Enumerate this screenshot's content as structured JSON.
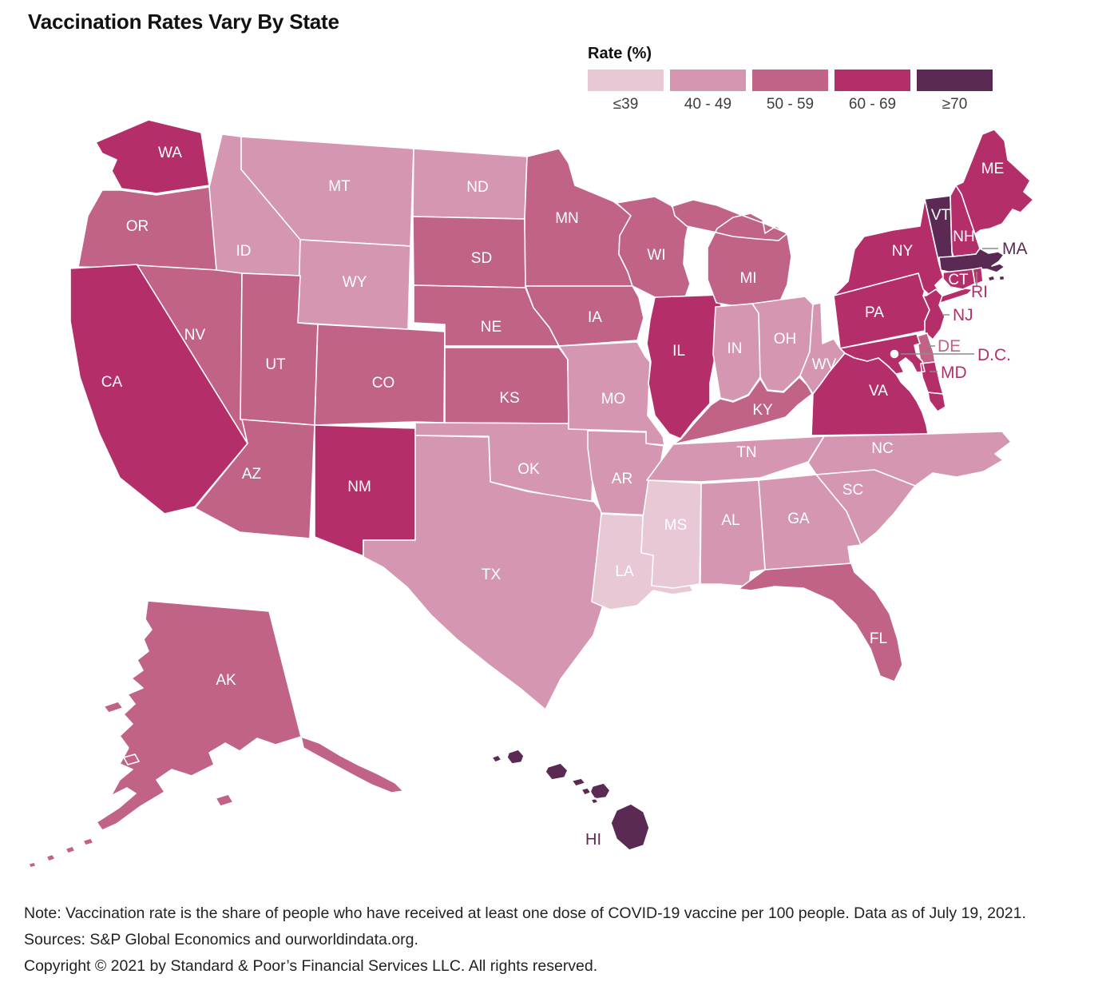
{
  "title": "Vaccination Rates Vary By State",
  "legend": {
    "title": "Rate (%)",
    "bands": [
      {
        "label": "≤39",
        "color": "#e9c8d6"
      },
      {
        "label": "40 - 49",
        "color": "#d596b1"
      },
      {
        "label": "50 - 59",
        "color": "#c16287"
      },
      {
        "label": "60 - 69",
        "color": "#b42f6a"
      },
      {
        "label": "≥70",
        "color": "#5a2a55"
      }
    ]
  },
  "map": {
    "border_color": "#ffffff",
    "leader_line_color": "#8c8c8c",
    "inside_label_color": "#ffffff",
    "dc_marker_fill": "#ffffff"
  },
  "chart_data": {
    "type": "choropleth",
    "title": "Vaccination Rates Vary By State",
    "metric": "COVID-19 vaccination rate: share of people who have received at least one dose per 100 people",
    "as_of": "July 19, 2021",
    "buckets": [
      "≤39",
      "40 - 49",
      "50 - 59",
      "60 - 69",
      "≥70"
    ],
    "states": [
      {
        "abbr": "WA",
        "bucket": "60 - 69"
      },
      {
        "abbr": "OR",
        "bucket": "50 - 59"
      },
      {
        "abbr": "CA",
        "bucket": "60 - 69"
      },
      {
        "abbr": "NV",
        "bucket": "50 - 59"
      },
      {
        "abbr": "ID",
        "bucket": "40 - 49"
      },
      {
        "abbr": "MT",
        "bucket": "40 - 49"
      },
      {
        "abbr": "WY",
        "bucket": "40 - 49"
      },
      {
        "abbr": "UT",
        "bucket": "50 - 59"
      },
      {
        "abbr": "CO",
        "bucket": "50 - 59"
      },
      {
        "abbr": "AZ",
        "bucket": "50 - 59"
      },
      {
        "abbr": "NM",
        "bucket": "60 - 69"
      },
      {
        "abbr": "ND",
        "bucket": "40 - 49"
      },
      {
        "abbr": "SD",
        "bucket": "50 - 59"
      },
      {
        "abbr": "NE",
        "bucket": "50 - 59"
      },
      {
        "abbr": "KS",
        "bucket": "50 - 59"
      },
      {
        "abbr": "OK",
        "bucket": "40 - 49"
      },
      {
        "abbr": "TX",
        "bucket": "40 - 49"
      },
      {
        "abbr": "MN",
        "bucket": "50 - 59"
      },
      {
        "abbr": "IA",
        "bucket": "50 - 59"
      },
      {
        "abbr": "MO",
        "bucket": "40 - 49"
      },
      {
        "abbr": "AR",
        "bucket": "40 - 49"
      },
      {
        "abbr": "LA",
        "bucket": "≤39"
      },
      {
        "abbr": "WI",
        "bucket": "50 - 59"
      },
      {
        "abbr": "IL",
        "bucket": "60 - 69"
      },
      {
        "abbr": "MS",
        "bucket": "≤39"
      },
      {
        "abbr": "MI",
        "bucket": "50 - 59"
      },
      {
        "abbr": "IN",
        "bucket": "40 - 49"
      },
      {
        "abbr": "OH",
        "bucket": "40 - 49"
      },
      {
        "abbr": "KY",
        "bucket": "50 - 59"
      },
      {
        "abbr": "TN",
        "bucket": "40 - 49"
      },
      {
        "abbr": "WV",
        "bucket": "40 - 49"
      },
      {
        "abbr": "VA",
        "bucket": "60 - 69"
      },
      {
        "abbr": "NC",
        "bucket": "40 - 49"
      },
      {
        "abbr": "SC",
        "bucket": "40 - 49"
      },
      {
        "abbr": "GA",
        "bucket": "40 - 49"
      },
      {
        "abbr": "AL",
        "bucket": "40 - 49"
      },
      {
        "abbr": "FL",
        "bucket": "50 - 59"
      },
      {
        "abbr": "PA",
        "bucket": "60 - 69"
      },
      {
        "abbr": "NY",
        "bucket": "60 - 69"
      },
      {
        "abbr": "VT",
        "bucket": "≥70"
      },
      {
        "abbr": "NH",
        "bucket": "60 - 69"
      },
      {
        "abbr": "ME",
        "bucket": "60 - 69"
      },
      {
        "abbr": "MA",
        "bucket": "≥70"
      },
      {
        "abbr": "CT",
        "bucket": "60 - 69"
      },
      {
        "abbr": "RI",
        "bucket": "60 - 69"
      },
      {
        "abbr": "NJ",
        "bucket": "60 - 69"
      },
      {
        "abbr": "DE",
        "bucket": "50 - 59"
      },
      {
        "abbr": "MD",
        "bucket": "60 - 69"
      },
      {
        "abbr": "D.C.",
        "bucket": "60 - 69"
      },
      {
        "abbr": "AK",
        "bucket": "50 - 59"
      },
      {
        "abbr": "HI",
        "bucket": "≥70"
      }
    ]
  },
  "footer": {
    "note": "Note: Vaccination rate is the share of people who have received at least one dose of COVID-19 vaccine per 100 people. Data as of July 19, 2021.",
    "sources": "Sources: S&P Global Economics and ourworldindata.org.",
    "copyright": "Copyright © 2021 by Standard & Poor’s Financial Services LLC. All rights reserved."
  }
}
